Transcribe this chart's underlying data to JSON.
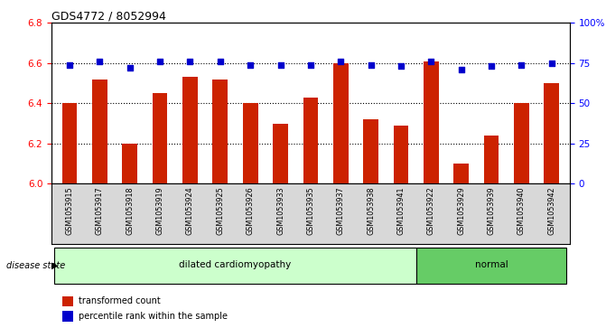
{
  "title": "GDS4772 / 8052994",
  "samples": [
    "GSM1053915",
    "GSM1053917",
    "GSM1053918",
    "GSM1053919",
    "GSM1053924",
    "GSM1053925",
    "GSM1053926",
    "GSM1053933",
    "GSM1053935",
    "GSM1053937",
    "GSM1053938",
    "GSM1053941",
    "GSM1053922",
    "GSM1053929",
    "GSM1053939",
    "GSM1053940",
    "GSM1053942"
  ],
  "bar_values": [
    6.4,
    6.52,
    6.2,
    6.45,
    6.53,
    6.52,
    6.4,
    6.3,
    6.43,
    6.6,
    6.32,
    6.29,
    6.61,
    6.1,
    6.24,
    6.4,
    6.5
  ],
  "percentile_values": [
    74,
    76,
    72,
    76,
    76,
    76,
    74,
    74,
    74,
    76,
    74,
    73,
    76,
    71,
    73,
    74,
    75
  ],
  "bar_color": "#cc2200",
  "dot_color": "#0000cc",
  "ylim_left": [
    6.0,
    6.8
  ],
  "ylim_right": [
    0,
    100
  ],
  "yticks_left": [
    6.0,
    6.2,
    6.4,
    6.6,
    6.8
  ],
  "yticks_right": [
    0,
    25,
    50,
    75,
    100
  ],
  "ytick_labels_right": [
    "0",
    "25",
    "50",
    "75",
    "100%"
  ],
  "groups": [
    {
      "label": "dilated cardiomyopathy",
      "start": 0,
      "end": 12,
      "color": "#ccffcc"
    },
    {
      "label": "normal",
      "start": 12,
      "end": 17,
      "color": "#66cc66"
    }
  ],
  "disease_state_label": "disease state",
  "legend_items": [
    {
      "label": "transformed count",
      "color": "#cc2200"
    },
    {
      "label": "percentile rank within the sample",
      "color": "#0000cc"
    }
  ],
  "tick_area_color": "#d8d8d8",
  "bar_width": 0.5,
  "n": 17
}
